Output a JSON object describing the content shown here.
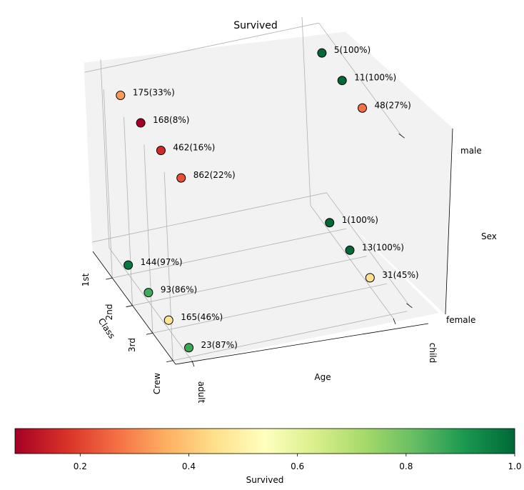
{
  "chart_data": {
    "type": "scatter",
    "title": "Survived",
    "axes": {
      "class": {
        "label": "Class",
        "ticks": [
          "1st",
          "2nd",
          "3rd",
          "Crew"
        ]
      },
      "age": {
        "label": "Age",
        "ticks": [
          "adult",
          "child"
        ]
      },
      "sex": {
        "label": "Sex",
        "ticks": [
          "female",
          "male"
        ]
      }
    },
    "points": [
      {
        "class": "1st",
        "age": "adult",
        "sex": "male",
        "survived": 0.33,
        "label": "175(33%)"
      },
      {
        "class": "2nd",
        "age": "adult",
        "sex": "male",
        "survived": 0.08,
        "label": "168(8%)"
      },
      {
        "class": "3rd",
        "age": "adult",
        "sex": "male",
        "survived": 0.16,
        "label": "462(16%)"
      },
      {
        "class": "Crew",
        "age": "adult",
        "sex": "male",
        "survived": 0.22,
        "label": "862(22%)"
      },
      {
        "class": "1st",
        "age": "child",
        "sex": "male",
        "survived": 1.0,
        "label": "5(100%)"
      },
      {
        "class": "2nd",
        "age": "child",
        "sex": "male",
        "survived": 1.0,
        "label": "11(100%)"
      },
      {
        "class": "3rd",
        "age": "child",
        "sex": "male",
        "survived": 0.27,
        "label": "48(27%)"
      },
      {
        "class": "1st",
        "age": "adult",
        "sex": "female",
        "survived": 0.97,
        "label": "144(97%)"
      },
      {
        "class": "2nd",
        "age": "adult",
        "sex": "female",
        "survived": 0.86,
        "label": "93(86%)"
      },
      {
        "class": "3rd",
        "age": "adult",
        "sex": "female",
        "survived": 0.46,
        "label": "165(46%)"
      },
      {
        "class": "Crew",
        "age": "adult",
        "sex": "female",
        "survived": 0.87,
        "label": "23(87%)"
      },
      {
        "class": "1st",
        "age": "child",
        "sex": "female",
        "survived": 1.0,
        "label": "1(100%)"
      },
      {
        "class": "2nd",
        "age": "child",
        "sex": "female",
        "survived": 1.0,
        "label": "13(100%)"
      },
      {
        "class": "3rd",
        "age": "child",
        "sex": "female",
        "survived": 0.45,
        "label": "31(45%)"
      }
    ],
    "colorbar": {
      "label": "Survived",
      "colormap": "RdYlGn",
      "range": [
        0.08,
        1.0
      ],
      "ticks": [
        0.2,
        0.4,
        0.6,
        0.8,
        1.0
      ],
      "tick_labels": [
        "0.2",
        "0.4",
        "0.6",
        "0.8",
        "1.0"
      ],
      "stops": [
        "#a50026",
        "#d73027",
        "#f46d43",
        "#fdae61",
        "#fee08b",
        "#ffffbf",
        "#d9ef8b",
        "#a6d96a",
        "#66bd63",
        "#1a9850",
        "#006837"
      ]
    },
    "grid": true,
    "legend": "none"
  }
}
